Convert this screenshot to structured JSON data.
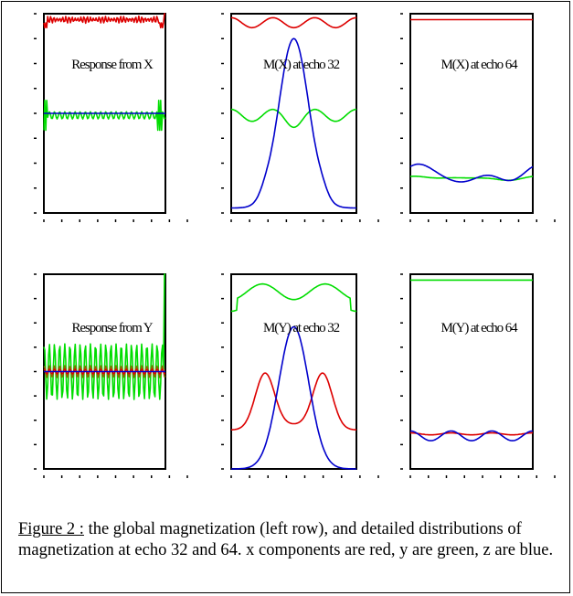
{
  "caption": {
    "label": "Figure 2 :",
    "text": " the global magnetization (left row), and  detailed distributions of magnetization  at echo 32 and 64. x components are red, y are green, z  are blue."
  },
  "colors": {
    "x": "#dd0000",
    "y": "#00dd00",
    "z": "#0000cc",
    "overlap": "#8a6a00"
  },
  "chart_data": [
    {
      "type": "line",
      "title": "Response from X",
      "x": {
        "min": 0,
        "max": 64
      },
      "ylim": [
        -1,
        1
      ],
      "series": [
        {
          "key": "x",
          "kind": "noise",
          "center": 0.94,
          "amp": 0.035,
          "period": 1.6,
          "edge_dip": 0.92,
          "edge_rise": 1.0
        },
        {
          "key": "y",
          "kind": "noise",
          "center": -0.02,
          "amp": 0.12,
          "period": 1.0,
          "edge_peak": 0.15
        },
        {
          "key": "z",
          "kind": "flat",
          "value": 0.0
        }
      ]
    },
    {
      "type": "line",
      "title": "M(X) at echo 32",
      "x": {
        "min": 0,
        "max": 7
      },
      "ylim": [
        -1,
        1
      ],
      "series": [
        {
          "key": "x",
          "kind": "harmonic",
          "base": 0.91,
          "a1": 0.0,
          "a2": 0.0,
          "a3": 0.05,
          "p1": 0,
          "p2": 0,
          "p3": 0
        },
        {
          "key": "y",
          "kind": "harmonic",
          "base": -0.02,
          "a1": 0.0,
          "a2": 0.0,
          "a3": 0.06,
          "p1": 0,
          "p2": 0,
          "p3": 0,
          "bump": -0.06
        },
        {
          "key": "z",
          "kind": "peak",
          "base": -0.95,
          "peak": 0.75,
          "shoulder": 0.05
        }
      ]
    },
    {
      "type": "line",
      "title": "M(X) at echo 64",
      "x": {
        "min": 0,
        "max": 7
      },
      "ylim": [
        -1,
        1
      ],
      "series": [
        {
          "key": "x",
          "kind": "flat",
          "value": 0.94
        },
        {
          "key": "y",
          "kind": "harmonic",
          "base": -0.65,
          "a1": 0.01,
          "a2": 0.01,
          "a3": 0.005,
          "p1": 0.3,
          "p2": 1.1,
          "p3": 0
        },
        {
          "key": "z",
          "kind": "harmonic",
          "base": -0.62,
          "a1": 0.06,
          "a2": 0.05,
          "a3": 0.01,
          "p1": 1.2,
          "p2": 0.4,
          "p3": 0
        }
      ]
    },
    {
      "type": "line",
      "title": "Response from Y",
      "x": {
        "min": 0,
        "max": 64
      },
      "ylim": [
        -1,
        1
      ],
      "series": [
        {
          "key": "y",
          "kind": "noise",
          "center": 0.0,
          "amp": 0.95,
          "period": 1.0,
          "edge_rise": 1.0
        },
        {
          "key": "overlap",
          "kind": "noise",
          "center": 0.0,
          "amp": 0.2,
          "period": 1.0
        },
        {
          "key": "x",
          "kind": "noise",
          "center": 0.0,
          "amp": 0.08,
          "period": 1.0
        },
        {
          "key": "z",
          "kind": "flat",
          "value": 0.0
        }
      ]
    },
    {
      "type": "line",
      "title": "M(Y) at echo 32",
      "x": {
        "min": 0,
        "max": 7
      },
      "ylim": [
        -1,
        1
      ],
      "series": [
        {
          "key": "y",
          "kind": "twin",
          "base": 0.74,
          "amp": 0.16
        },
        {
          "key": "x",
          "kind": "twinpeak",
          "base": -0.6,
          "amp": 0.58
        },
        {
          "key": "z",
          "kind": "peak",
          "base": -1.0,
          "peak": 0.46,
          "shoulder": 0.0
        }
      ]
    },
    {
      "type": "line",
      "title": "M(Y) at echo 64",
      "x": {
        "min": 0,
        "max": 7
      },
      "ylim": [
        -1,
        1
      ],
      "series": [
        {
          "key": "y",
          "kind": "flat",
          "value": 0.94
        },
        {
          "key": "x",
          "kind": "harmonic",
          "base": -0.64,
          "a1": 0.0,
          "a2": 0.0,
          "a3": 0.01,
          "p1": 0,
          "p2": 0,
          "p3": 0
        },
        {
          "key": "z",
          "kind": "harmonic",
          "base": -0.66,
          "a1": 0.0,
          "a2": 0.0,
          "a3": 0.05,
          "p1": 0,
          "p2": 0,
          "p3": 0
        }
      ]
    }
  ]
}
